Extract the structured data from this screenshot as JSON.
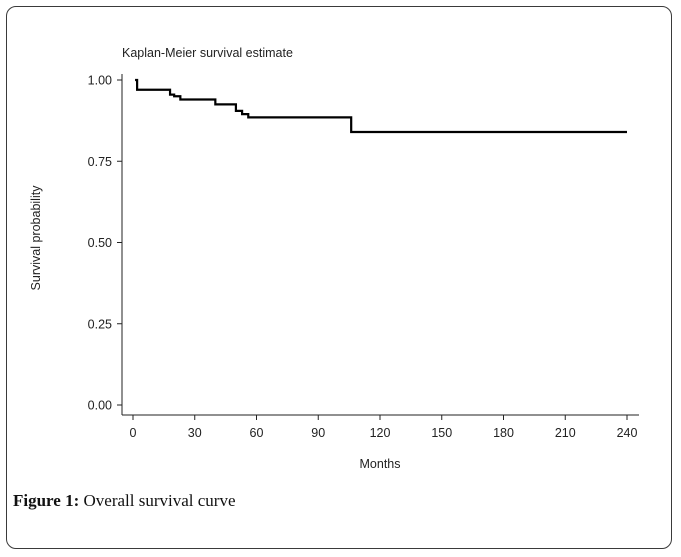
{
  "chart_data": {
    "type": "line",
    "title": "Kaplan-Meier survival estimate",
    "xlabel": "Months",
    "ylabel": "Survival probability",
    "xlim": [
      0,
      240
    ],
    "ylim": [
      0,
      1
    ],
    "x_ticks": [
      0,
      30,
      60,
      90,
      120,
      150,
      180,
      210,
      240
    ],
    "y_ticks": [
      0.0,
      0.25,
      0.5,
      0.75,
      1.0
    ],
    "y_tick_labels": [
      "0.00",
      "0.25",
      "0.50",
      "0.75",
      "1.00"
    ],
    "grid": false,
    "series": [
      {
        "step": true,
        "x": [
          1,
          2,
          18,
          20,
          23,
          40,
          50,
          53,
          56,
          106,
          240
        ],
        "y": [
          1.0,
          0.97,
          0.955,
          0.95,
          0.94,
          0.925,
          0.905,
          0.895,
          0.885,
          0.84,
          0.84
        ]
      }
    ]
  },
  "caption": {
    "label": "Figure 1:",
    "text": " Overall survival curve"
  }
}
